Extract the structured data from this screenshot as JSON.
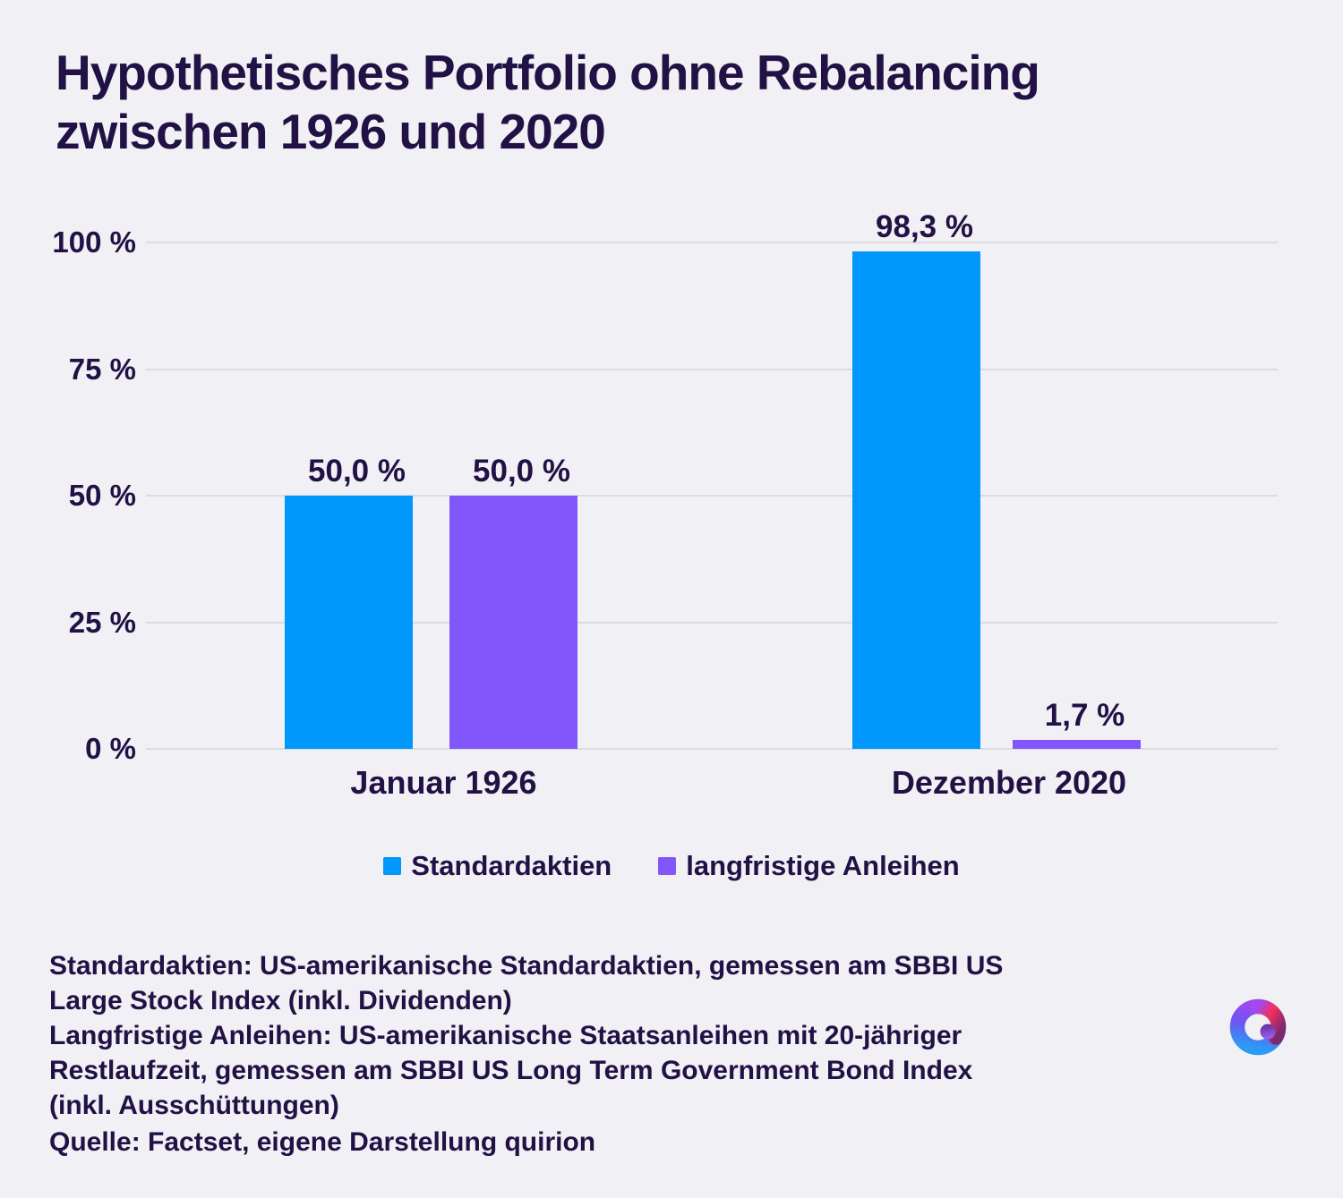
{
  "title": "Hypothetisches Portfolio ohne Rebalancing zwischen 1926 und 2020",
  "colors": {
    "stocks": "#0098fc",
    "bonds": "#8156fb",
    "text": "#211145",
    "background": "#f1f0f4",
    "gridline": "#dcdae5"
  },
  "chart_data": {
    "type": "bar",
    "title": "Hypothetisches Portfolio ohne Rebalancing zwischen 1926 und 2020",
    "categories": [
      "Januar 1926",
      "Dezember 2020"
    ],
    "series": [
      {
        "name": "Standardaktien",
        "color_key": "stocks",
        "values": [
          50.0,
          98.3
        ],
        "value_labels": [
          "50,0 %",
          "98,3 %"
        ]
      },
      {
        "name": "langfristige Anleihen",
        "color_key": "bonds",
        "values": [
          50.0,
          1.7
        ],
        "value_labels": [
          "50,0 %",
          "1,7 %"
        ]
      }
    ],
    "y_ticks": [
      {
        "label": "100 %",
        "value": 100
      },
      {
        "label": "75 %",
        "value": 75
      },
      {
        "label": "50 %",
        "value": 50
      },
      {
        "label": "25 %",
        "value": 25
      },
      {
        "label": "0 %",
        "value": 0
      }
    ],
    "ylim": [
      0,
      100
    ],
    "xlabel": "",
    "ylabel": "",
    "grid": true,
    "legend_position": "bottom"
  },
  "footnotes": [
    "Standardaktien: US-amerikanische Standardaktien, gemessen am SBBI US",
    "Large Stock Index (inkl. Dividenden)",
    "Langfristige Anleihen: US-amerikanische Staatsanleihen mit 20-jähriger",
    "Restlaufzeit, gemessen am SBBI US Long Term Government Bond Index",
    "(inkl. Ausschüttungen)"
  ],
  "source": "Quelle: Factset, eigene Darstellung quirion",
  "logo": {
    "name": "quirion-logo"
  }
}
